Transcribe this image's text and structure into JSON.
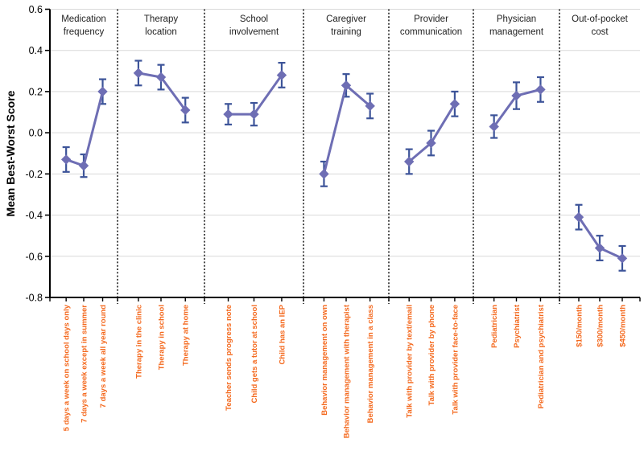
{
  "chart_data": {
    "type": "line",
    "title": "",
    "ylabel": "Mean Best-Worst Score",
    "xlabel": "",
    "ylim": [
      -0.8,
      0.6
    ],
    "yticks": [
      0.6,
      0.4,
      0.2,
      0.0,
      -0.2,
      -0.4,
      -0.6,
      -0.8
    ],
    "grid": true,
    "legend": "none",
    "panels": [
      {
        "title": "Medication frequency",
        "categories": [
          "5 days a week on school days only",
          "7 days a week except in summer",
          "7 days a week all year round"
        ],
        "values": [
          -0.13,
          -0.16,
          0.2
        ],
        "errors": [
          0.06,
          0.055,
          0.06
        ]
      },
      {
        "title": "Therapy location",
        "categories": [
          "Therapy in the clinic",
          "Therapy in school",
          "Therapy at home"
        ],
        "values": [
          0.29,
          0.27,
          0.11
        ],
        "errors": [
          0.06,
          0.06,
          0.06
        ]
      },
      {
        "title": "School involvement",
        "categories": [
          "Teacher sends progress note",
          "Child gets a tutor at school",
          "Child has an IEP"
        ],
        "values": [
          0.09,
          0.09,
          0.28
        ],
        "errors": [
          0.05,
          0.055,
          0.06
        ]
      },
      {
        "title": "Caregiver training",
        "categories": [
          "Behavior management on own",
          "Behavior management with therapist",
          "Behavior management in a class"
        ],
        "values": [
          -0.2,
          0.23,
          0.13
        ],
        "errors": [
          0.06,
          0.055,
          0.06
        ]
      },
      {
        "title": "Provider communication",
        "categories": [
          "Talk with provider by text/email",
          "Talk with provider by phone",
          "Talk with provider face-to-face"
        ],
        "values": [
          -0.14,
          -0.05,
          0.14
        ],
        "errors": [
          0.06,
          0.06,
          0.06
        ]
      },
      {
        "title": "Physician management",
        "categories": [
          "Pediatrician",
          "Psychiatrist",
          "Pediatrician and psychiatrist"
        ],
        "values": [
          0.03,
          0.18,
          0.21
        ],
        "errors": [
          0.055,
          0.065,
          0.06
        ]
      },
      {
        "title": "Out-of-pocket cost",
        "categories": [
          "$150/month",
          "$300/month",
          "$450/month"
        ],
        "values": [
          -0.41,
          -0.56,
          -0.61
        ],
        "errors": [
          0.06,
          0.06,
          0.06
        ]
      }
    ],
    "colors": {
      "line": "#6E6EB4",
      "error_bar": "#3D5499",
      "grid": "#D9D9D9",
      "axis": "#000000",
      "category_label": "#F4691E",
      "panel_title": "#1F1F1F"
    }
  }
}
